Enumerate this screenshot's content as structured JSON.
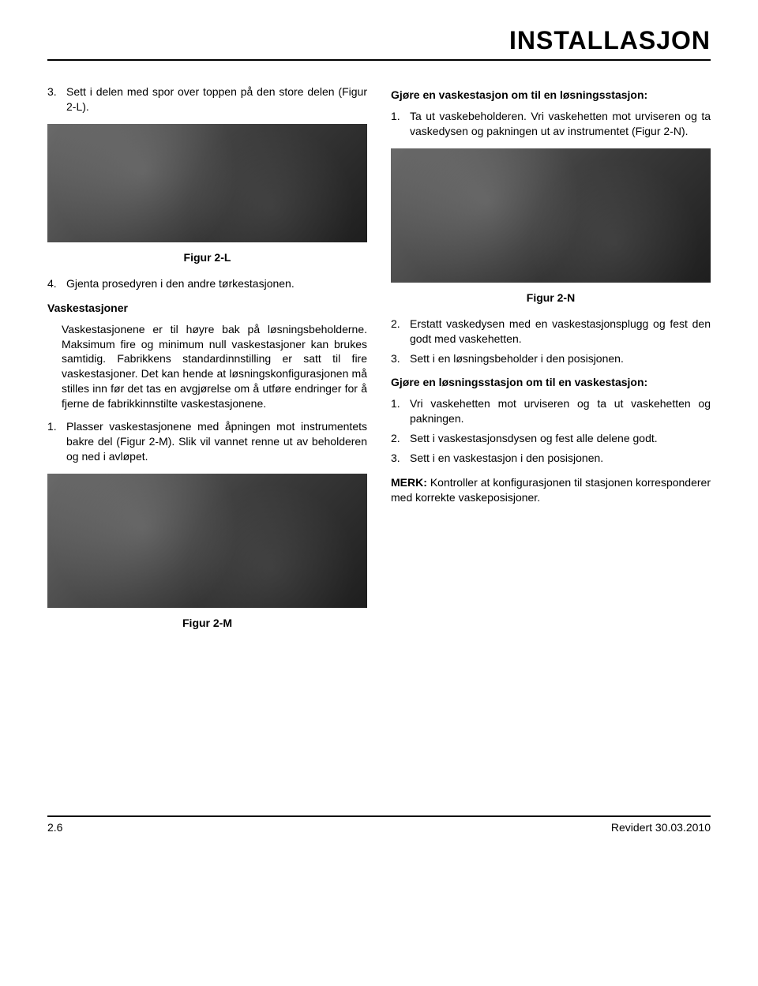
{
  "header": {
    "title": "INSTALLASJON"
  },
  "left": {
    "item3_num": "3.",
    "item3_text": "Sett i delen med spor over toppen på den store delen (Figur 2-L).",
    "fig_2l_caption": "Figur 2-L",
    "item4_num": "4.",
    "item4_text": "Gjenta prosedyren i den andre tørkestasjonen.",
    "vaskestasjoner_heading": "Vaskestasjoner",
    "vaskestasjoner_para": "Vaskestasjonene er til høyre bak på løsningsbeholderne. Maksimum fire og minimum null vaskestasjoner kan brukes samtidig. Fabrikkens standardinnstilling er satt til fire vaskestasjoner. Det kan hende at løsningskonfigurasjonen må stilles inn før det tas en avgjørelse om å utføre endringer for å fjerne de fabrikkinnstilte vaskestasjonene.",
    "item1_num": "1.",
    "item1_text": "Plasser vaskestasjonene med åpningen mot instrumentets bakre del (Figur 2-M). Slik vil vannet renne ut av beholderen og ned i avløpet.",
    "fig_2m_caption": "Figur 2-M"
  },
  "right": {
    "heading1": "Gjøre en vaskestasjon om til en løsningsstasjon:",
    "r1_num": "1.",
    "r1_text": "Ta ut vaskebeholderen. Vri vaskehetten mot urviseren og ta vaskedysen og pakningen ut av instrumentet (Figur 2-N).",
    "fig_2n_caption": "Figur 2-N",
    "r2_num": "2.",
    "r2_text": "Erstatt vaskedysen med en vaskestasjonsplugg og fest den godt med vaskehetten.",
    "r3_num": "3.",
    "r3_text": "Sett i en løsningsbeholder i den posisjonen.",
    "heading2": "Gjøre en løsningsstasjon om til en vaskestasjon:",
    "s1_num": "1.",
    "s1_text": "Vri vaskehetten mot urviseren og ta ut vaskehetten og pakningen.",
    "s2_num": "2.",
    "s2_text": "Sett i vaskestasjonsdysen og fest alle delene godt.",
    "s3_num": "3.",
    "s3_text": "Sett i en vaskestasjon i den posisjonen.",
    "merk_label": "MERK:",
    "merk_text": " Kontroller at konfigurasjonen til stasjonen korresponderer med korrekte vaskeposisjoner."
  },
  "footer": {
    "page": "2.6",
    "revision": "Revidert 30.03.2010"
  }
}
